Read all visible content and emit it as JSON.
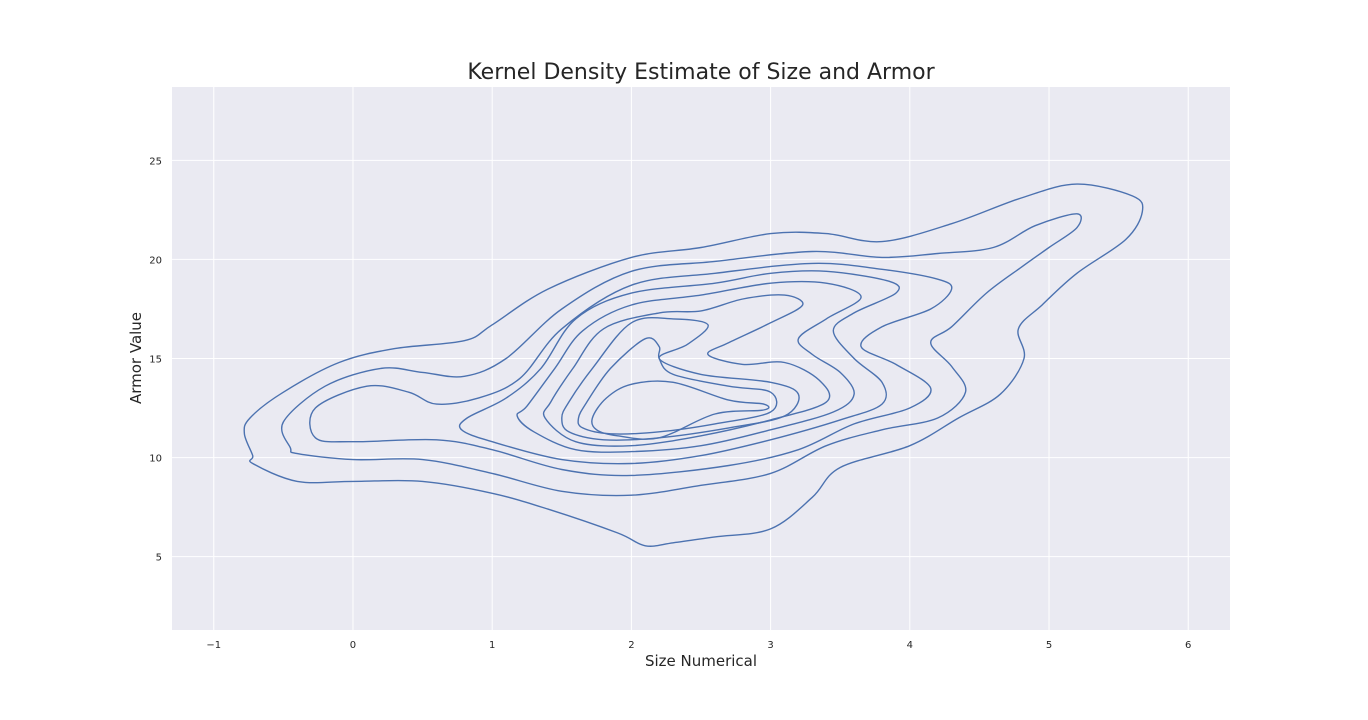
{
  "chart_data": {
    "type": "kde_contour",
    "title": "Kernel Density Estimate of Size and Armor",
    "xlabel": "Size Numerical",
    "ylabel": "Armor Value",
    "xlim": [
      -1.3,
      6.3
    ],
    "ylim": [
      1.3,
      28.7
    ],
    "x_ticks": [
      -1,
      0,
      1,
      2,
      3,
      4,
      5,
      6
    ],
    "x_tick_labels": [
      "−1",
      "0",
      "1",
      "2",
      "3",
      "4",
      "5",
      "6"
    ],
    "y_ticks": [
      5,
      10,
      15,
      20,
      25
    ],
    "y_tick_labels": [
      "5",
      "10",
      "15",
      "20",
      "25"
    ],
    "grid": true,
    "background": "#eaeaf2",
    "grid_color": "#ffffff",
    "line_color": "#4c72b0",
    "levels": [
      {
        "level": 1,
        "points": [
          [
            -0.72,
            10.1
          ],
          [
            -0.78,
            11.2
          ],
          [
            -0.74,
            12.0
          ],
          [
            -0.5,
            13.3
          ],
          [
            -0.1,
            14.8
          ],
          [
            0.3,
            15.5
          ],
          [
            0.8,
            15.9
          ],
          [
            1.0,
            16.7
          ],
          [
            1.4,
            18.5
          ],
          [
            2.0,
            20.1
          ],
          [
            2.5,
            20.6
          ],
          [
            3.0,
            21.3
          ],
          [
            3.4,
            21.3
          ],
          [
            3.8,
            20.9
          ],
          [
            4.3,
            21.8
          ],
          [
            4.8,
            23.1
          ],
          [
            5.2,
            23.8
          ],
          [
            5.6,
            23.2
          ],
          [
            5.67,
            22.4
          ],
          [
            5.55,
            21.0
          ],
          [
            5.2,
            19.3
          ],
          [
            4.95,
            17.7
          ],
          [
            4.78,
            16.5
          ],
          [
            4.82,
            15.0
          ],
          [
            4.65,
            13.2
          ],
          [
            4.35,
            12.0
          ],
          [
            4.0,
            10.6
          ],
          [
            3.5,
            9.5
          ],
          [
            3.3,
            8.0
          ],
          [
            3.0,
            6.4
          ],
          [
            2.6,
            6.0
          ],
          [
            2.3,
            5.7
          ],
          [
            2.1,
            5.55
          ],
          [
            1.9,
            6.2
          ],
          [
            1.4,
            7.4
          ],
          [
            1.0,
            8.2
          ],
          [
            0.5,
            8.8
          ],
          [
            0.0,
            8.8
          ],
          [
            -0.4,
            8.8
          ],
          [
            -0.72,
            9.7
          ],
          [
            -0.72,
            10.1
          ]
        ]
      },
      {
        "level": 2,
        "points": [
          [
            -0.45,
            10.5
          ],
          [
            -0.5,
            11.8
          ],
          [
            -0.2,
            13.6
          ],
          [
            0.2,
            14.5
          ],
          [
            0.5,
            14.3
          ],
          [
            0.8,
            14.1
          ],
          [
            1.1,
            15.0
          ],
          [
            1.5,
            17.5
          ],
          [
            2.0,
            19.4
          ],
          [
            2.6,
            19.9
          ],
          [
            3.3,
            20.4
          ],
          [
            3.8,
            20.1
          ],
          [
            4.2,
            20.3
          ],
          [
            4.6,
            20.6
          ],
          [
            4.9,
            21.7
          ],
          [
            5.2,
            22.3
          ],
          [
            5.2,
            21.6
          ],
          [
            5.0,
            20.6
          ],
          [
            4.8,
            19.6
          ],
          [
            4.55,
            18.3
          ],
          [
            4.3,
            16.6
          ],
          [
            4.15,
            15.8
          ],
          [
            4.3,
            14.6
          ],
          [
            4.4,
            13.3
          ],
          [
            4.2,
            12.0
          ],
          [
            3.8,
            11.4
          ],
          [
            3.4,
            10.6
          ],
          [
            3.0,
            9.2
          ],
          [
            2.5,
            8.6
          ],
          [
            2.0,
            8.1
          ],
          [
            1.5,
            8.3
          ],
          [
            1.0,
            9.2
          ],
          [
            0.5,
            9.9
          ],
          [
            0.0,
            9.9
          ],
          [
            -0.4,
            10.2
          ],
          [
            -0.45,
            10.5
          ]
        ]
      },
      {
        "level": 3,
        "points": [
          [
            -0.27,
            11.0
          ],
          [
            -0.27,
            12.5
          ],
          [
            0.1,
            13.6
          ],
          [
            0.4,
            13.3
          ],
          [
            0.6,
            12.7
          ],
          [
            0.9,
            13.0
          ],
          [
            1.2,
            14.0
          ],
          [
            1.5,
            16.5
          ],
          [
            2.0,
            18.7
          ],
          [
            2.6,
            19.3
          ],
          [
            3.3,
            19.8
          ],
          [
            3.8,
            19.5
          ],
          [
            4.2,
            19.0
          ],
          [
            4.3,
            18.5
          ],
          [
            4.15,
            17.5
          ],
          [
            3.8,
            16.6
          ],
          [
            3.65,
            15.6
          ],
          [
            3.9,
            14.7
          ],
          [
            4.15,
            13.5
          ],
          [
            4.0,
            12.5
          ],
          [
            3.6,
            11.7
          ],
          [
            3.2,
            10.4
          ],
          [
            2.7,
            9.6
          ],
          [
            2.0,
            9.1
          ],
          [
            1.5,
            9.4
          ],
          [
            1.0,
            10.4
          ],
          [
            0.6,
            10.9
          ],
          [
            0.0,
            10.8
          ],
          [
            -0.27,
            11.0
          ]
        ]
      },
      {
        "level": 4,
        "points": [
          [
            0.78,
            11.4
          ],
          [
            0.82,
            12.0
          ],
          [
            1.1,
            13.0
          ],
          [
            1.35,
            14.5
          ],
          [
            1.6,
            17.0
          ],
          [
            2.0,
            18.3
          ],
          [
            2.6,
            18.8
          ],
          [
            3.0,
            19.3
          ],
          [
            3.4,
            19.4
          ],
          [
            3.85,
            18.9
          ],
          [
            3.9,
            18.3
          ],
          [
            3.6,
            17.3
          ],
          [
            3.45,
            16.4
          ],
          [
            3.6,
            15.0
          ],
          [
            3.8,
            13.8
          ],
          [
            3.8,
            12.7
          ],
          [
            3.5,
            11.9
          ],
          [
            3.0,
            10.9
          ],
          [
            2.5,
            10.1
          ],
          [
            2.0,
            9.7
          ],
          [
            1.5,
            9.9
          ],
          [
            1.0,
            10.8
          ],
          [
            0.78,
            11.4
          ]
        ]
      },
      {
        "level": 5,
        "points": [
          [
            1.18,
            12.1
          ],
          [
            1.25,
            12.6
          ],
          [
            1.45,
            14.5
          ],
          [
            1.65,
            16.4
          ],
          [
            2.0,
            17.7
          ],
          [
            2.5,
            18.2
          ],
          [
            3.0,
            18.8
          ],
          [
            3.4,
            18.8
          ],
          [
            3.65,
            18.1
          ],
          [
            3.4,
            17.0
          ],
          [
            3.2,
            16.0
          ],
          [
            3.3,
            15.2
          ],
          [
            3.5,
            14.3
          ],
          [
            3.6,
            13.2
          ],
          [
            3.45,
            12.3
          ],
          [
            3.0,
            11.4
          ],
          [
            2.5,
            10.6
          ],
          [
            2.0,
            10.3
          ],
          [
            1.6,
            10.4
          ],
          [
            1.3,
            11.3
          ],
          [
            1.18,
            12.1
          ]
        ]
      },
      {
        "level": 6,
        "points": [
          [
            1.38,
            12.0
          ],
          [
            1.42,
            12.8
          ],
          [
            1.58,
            14.5
          ],
          [
            1.8,
            16.5
          ],
          [
            2.2,
            17.3
          ],
          [
            2.5,
            17.4
          ],
          [
            2.8,
            18.0
          ],
          [
            3.1,
            18.2
          ],
          [
            3.23,
            17.7
          ],
          [
            3.0,
            16.8
          ],
          [
            2.7,
            15.8
          ],
          [
            2.55,
            15.2
          ],
          [
            2.8,
            14.7
          ],
          [
            3.1,
            14.8
          ],
          [
            3.35,
            13.9
          ],
          [
            3.4,
            12.8
          ],
          [
            3.0,
            11.9
          ],
          [
            2.5,
            11.1
          ],
          [
            2.0,
            10.6
          ],
          [
            1.6,
            10.8
          ],
          [
            1.38,
            12.0
          ]
        ]
      },
      {
        "level": 7,
        "points": [
          [
            1.5,
            12.0
          ],
          [
            1.55,
            12.8
          ],
          [
            1.72,
            14.5
          ],
          [
            2.0,
            16.8
          ],
          [
            2.3,
            17.0
          ],
          [
            2.55,
            16.7
          ],
          [
            2.4,
            15.7
          ],
          [
            2.2,
            15.0
          ],
          [
            2.5,
            14.2
          ],
          [
            3.0,
            13.8
          ],
          [
            3.2,
            13.2
          ],
          [
            3.1,
            12.1
          ],
          [
            2.7,
            11.5
          ],
          [
            2.2,
            11.0
          ],
          [
            1.8,
            10.9
          ],
          [
            1.55,
            11.3
          ],
          [
            1.5,
            12.0
          ]
        ]
      },
      {
        "level": 8,
        "points": [
          [
            1.62,
            12.0
          ],
          [
            1.68,
            12.8
          ],
          [
            1.85,
            14.5
          ],
          [
            2.1,
            16.0
          ],
          [
            2.2,
            15.6
          ],
          [
            2.2,
            15.0
          ],
          [
            2.3,
            14.2
          ],
          [
            2.7,
            13.6
          ],
          [
            3.0,
            13.3
          ],
          [
            3.0,
            12.3
          ],
          [
            2.6,
            11.7
          ],
          [
            2.2,
            11.3
          ],
          [
            1.85,
            11.2
          ],
          [
            1.65,
            11.5
          ],
          [
            1.62,
            12.0
          ]
        ]
      },
      {
        "level": 9,
        "points": [
          [
            1.72,
            12.0
          ],
          [
            1.82,
            13.0
          ],
          [
            2.0,
            13.7
          ],
          [
            2.3,
            13.8
          ],
          [
            2.7,
            12.9
          ],
          [
            2.95,
            12.7
          ],
          [
            2.95,
            12.4
          ],
          [
            2.6,
            12.2
          ],
          [
            2.2,
            11.0
          ],
          [
            1.9,
            11.1
          ],
          [
            1.75,
            11.4
          ],
          [
            1.72,
            12.0
          ]
        ]
      }
    ]
  }
}
